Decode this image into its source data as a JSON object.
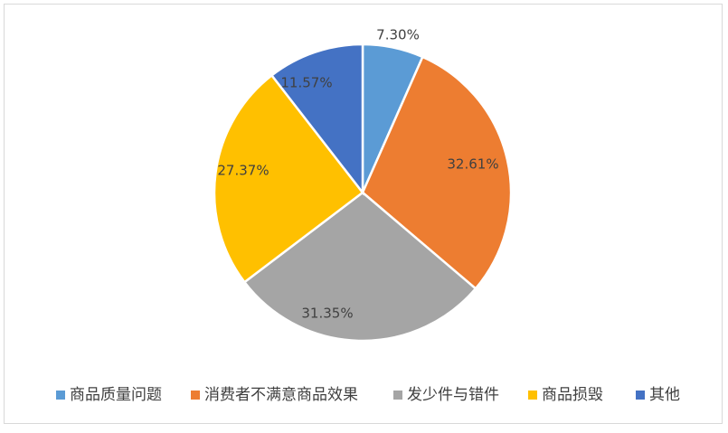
{
  "chart_data": {
    "type": "pie",
    "title": "",
    "legend_position": "bottom",
    "slices": [
      {
        "label": "商品质量问题",
        "value": 7.3,
        "display": "7.30%",
        "color": "#5b9bd5"
      },
      {
        "label": "消费者不满意商品效果",
        "value": 32.61,
        "display": "32.61%",
        "color": "#ed7d31"
      },
      {
        "label": "发少件与错件",
        "value": 31.35,
        "display": "31.35%",
        "color": "#a5a5a5"
      },
      {
        "label": "商品损毁",
        "value": 27.37,
        "display": "27.37%",
        "color": "#ffc000"
      },
      {
        "label": "其他",
        "value": 11.57,
        "display": "11.57%",
        "color": "#4472c4"
      }
    ]
  }
}
